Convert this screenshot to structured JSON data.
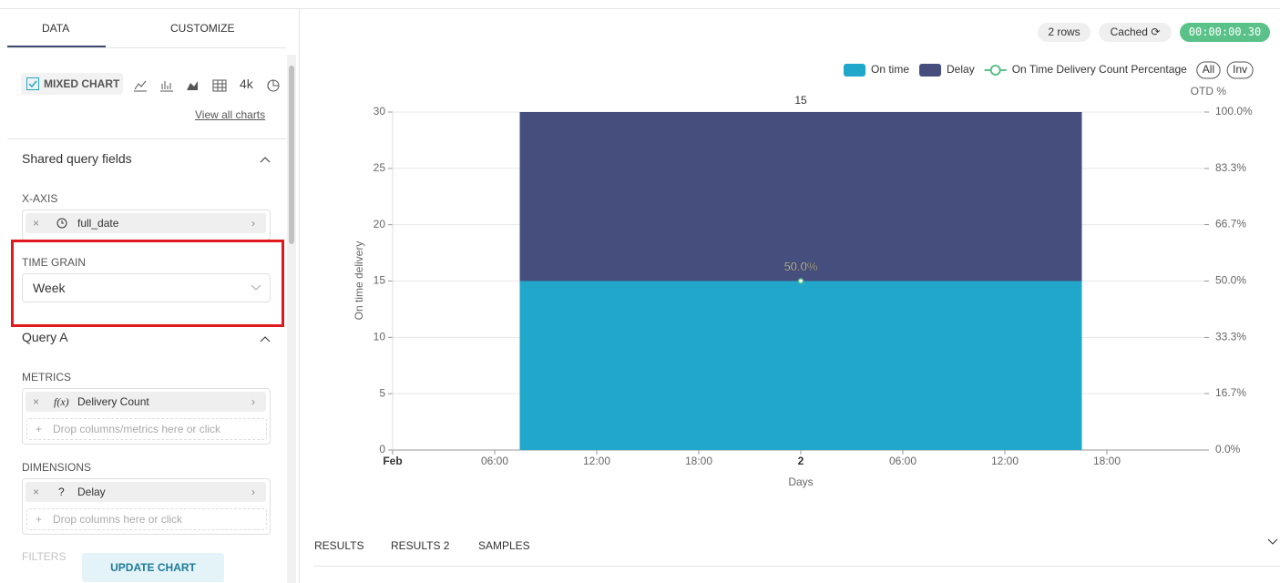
{
  "sidebar": {
    "tabs": [
      "DATA",
      "CUSTOMIZE"
    ],
    "chart_type": "MIXED CHART",
    "chart_icon_label": "4k",
    "view_all": "View all charts",
    "shared_section": "Shared query fields",
    "x_axis_label": "X-AXIS",
    "x_axis_field": "full_date",
    "time_grain_label": "TIME GRAIN",
    "time_grain_value": "Week",
    "query_section": "Query A",
    "metrics_label": "METRICS",
    "metric_fx": "f(x)",
    "metric": "Delivery Count",
    "metric_drop": "Drop columns/metrics here or click",
    "dimensions_label": "DIMENSIONS",
    "dimension_icon": "?",
    "dimension": "Delay",
    "dimension_drop": "Drop columns here or click",
    "filters_label": "FILTERS",
    "update_button": "UPDATE CHART"
  },
  "status": {
    "rows": "2 rows",
    "cache": "Cached",
    "timer": "00:00:00.30"
  },
  "result_tabs": [
    "RESULTS",
    "RESULTS 2",
    "SAMPLES"
  ],
  "chart_data": {
    "type": "mixed",
    "ylabel": "On time delivery",
    "y2label": "OTD %",
    "xlabel": "Days",
    "legend_toggles": [
      "All",
      "Inv"
    ],
    "x": [
      24
    ],
    "xlim": [
      0,
      48
    ],
    "xticks": [
      {
        "value": 0,
        "label": "Feb"
      },
      {
        "value": 6,
        "label": "06:00"
      },
      {
        "value": 12,
        "label": "12:00"
      },
      {
        "value": 18,
        "label": "18:00"
      },
      {
        "value": 24,
        "label": "2"
      },
      {
        "value": 30,
        "label": "06:00"
      },
      {
        "value": 36,
        "label": "12:00"
      },
      {
        "value": 42,
        "label": "18:00"
      }
    ],
    "ylim": [
      0,
      30
    ],
    "yticks": [
      0,
      5,
      10,
      15,
      20,
      25,
      30
    ],
    "y2lim": [
      0,
      100
    ],
    "y2ticks": [
      {
        "value": 0,
        "label": "0.0%"
      },
      {
        "value": 16.7,
        "label": "16.7%"
      },
      {
        "value": 33.3,
        "label": "33.3%"
      },
      {
        "value": 50,
        "label": "50.0%"
      },
      {
        "value": 66.7,
        "label": "66.7%"
      },
      {
        "value": 83.3,
        "label": "83.3%"
      },
      {
        "value": 100,
        "label": "100.0%"
      }
    ],
    "grid": true,
    "series": [
      {
        "name": "On time",
        "type": "bar",
        "color": "#20a7c9",
        "values": [
          15
        ]
      },
      {
        "name": "Delay",
        "type": "bar",
        "color": "#454e7c",
        "values": [
          15
        ]
      },
      {
        "name": "On Time Delivery Count Percentage",
        "type": "line",
        "axis": "y2",
        "color": "#5ac189",
        "values": [
          50
        ],
        "value_labels": [
          "50.0%"
        ]
      }
    ]
  }
}
